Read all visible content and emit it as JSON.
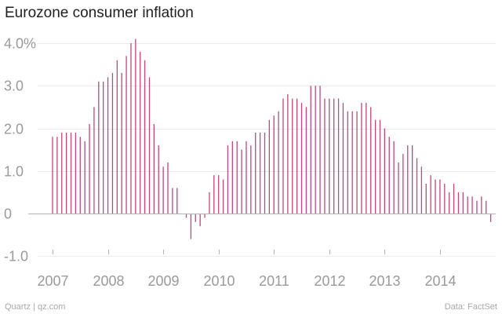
{
  "chart_data": {
    "type": "bar",
    "title": "Eurozone consumer inflation",
    "xlabel": "",
    "ylabel": "",
    "ylim": [
      -1.0,
      4.0
    ],
    "yticks": [
      {
        "value": 4.0,
        "label": "4.0%"
      },
      {
        "value": 3.0,
        "label": "3.0"
      },
      {
        "value": 2.0,
        "label": "2.0"
      },
      {
        "value": 1.0,
        "label": "1.0"
      },
      {
        "value": 0,
        "label": "0"
      },
      {
        "value": -1.0,
        "label": "-1.0"
      }
    ],
    "xticks": [
      "2007",
      "2008",
      "2009",
      "2010",
      "2011",
      "2012",
      "2013",
      "2014"
    ],
    "start": "2007-01",
    "frequency": "monthly",
    "values": [
      1.8,
      1.8,
      1.9,
      1.9,
      1.9,
      1.9,
      1.8,
      1.7,
      2.1,
      2.5,
      3.1,
      3.1,
      3.2,
      3.3,
      3.6,
      3.3,
      3.7,
      4.0,
      4.1,
      3.8,
      3.6,
      3.2,
      2.1,
      1.6,
      1.1,
      1.2,
      0.6,
      0.6,
      0.0,
      -0.1,
      -0.6,
      -0.2,
      -0.3,
      -0.1,
      0.5,
      0.9,
      0.9,
      0.8,
      1.6,
      1.7,
      1.7,
      1.5,
      1.7,
      1.6,
      1.9,
      1.9,
      1.9,
      2.2,
      2.3,
      2.4,
      2.7,
      2.8,
      2.7,
      2.7,
      2.6,
      2.5,
      3.0,
      3.0,
      3.0,
      2.7,
      2.7,
      2.7,
      2.7,
      2.6,
      2.4,
      2.4,
      2.4,
      2.6,
      2.6,
      2.5,
      2.2,
      2.2,
      2.0,
      1.8,
      1.7,
      1.2,
      1.4,
      1.6,
      1.6,
      1.3,
      1.1,
      0.7,
      0.9,
      0.8,
      0.8,
      0.7,
      0.5,
      0.7,
      0.5,
      0.5,
      0.4,
      0.4,
      0.3,
      0.4,
      0.3,
      -0.2
    ],
    "bar_color": "#c0467d",
    "grid": true,
    "legend": null
  },
  "footer": {
    "source_left": "Quartz | qz.com",
    "source_right": "Data: FactSet"
  }
}
